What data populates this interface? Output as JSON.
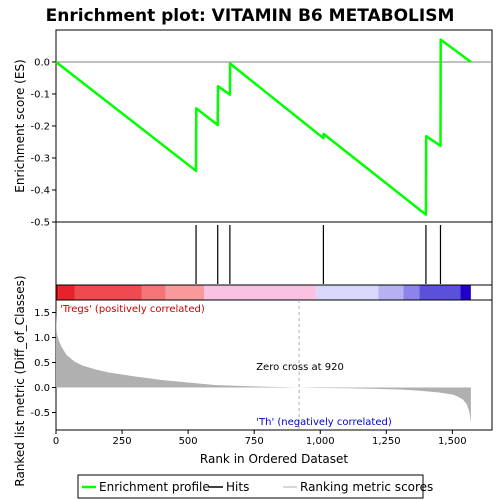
{
  "chart_data": [
    {
      "type": "line",
      "title": "Enrichment plot: VITAMIN B6 METABOLISM",
      "ylabel": "Enrichment score (ES)",
      "xlim": [
        0,
        1650
      ],
      "ylim": [
        -0.5,
        0.1
      ],
      "yticks": [
        "0.0",
        "-0.1",
        "-0.2",
        "-0.3",
        "-0.4",
        "-0.5"
      ],
      "grid": false,
      "series": [
        {
          "name": "Enrichment profile",
          "color": "#00ff00",
          "x": [
            0,
            530,
            531,
            612,
            613,
            658,
            659,
            1012,
            1013,
            1400,
            1401,
            1455,
            1456,
            1570
          ],
          "y": [
            0.0,
            -0.34,
            -0.145,
            -0.197,
            -0.076,
            -0.102,
            -0.005,
            -0.238,
            -0.225,
            -0.477,
            -0.232,
            -0.262,
            0.07,
            0.0
          ]
        }
      ]
    },
    {
      "type": "hits",
      "name": "Hits",
      "color": "#000000",
      "positions": [
        530,
        612,
        658,
        1012,
        1400,
        1455
      ]
    },
    {
      "type": "area",
      "ylabel": "Ranked list metric (Diff_of_Classes)",
      "xlabel": "Rank in Ordered Dataset",
      "xlim": [
        0,
        1650
      ],
      "ylim": [
        -0.85,
        1.75
      ],
      "xticks": [
        0,
        250,
        500,
        750,
        1000,
        1250,
        1500
      ],
      "xtick_labels": [
        "0",
        "250",
        "500",
        "750",
        "1,000",
        "1,250",
        "1,500"
      ],
      "yticks": [
        1.5,
        1.0,
        0.5,
        0.0,
        -0.5
      ],
      "ytick_labels": [
        "1.5",
        "1.0",
        "0.5",
        "0.0",
        "-0.5"
      ],
      "series": [
        {
          "name": "Ranking metric scores",
          "color": "#b0b0b0",
          "x": [
            0,
            3,
            10,
            20,
            40,
            70,
            100,
            150,
            200,
            250,
            300,
            400,
            500,
            600,
            700,
            800,
            920,
            1000,
            1100,
            1200,
            1300,
            1350,
            1400,
            1450,
            1500,
            1520,
            1540,
            1555,
            1565,
            1570
          ],
          "y": [
            1.5,
            1.1,
            0.95,
            0.82,
            0.65,
            0.52,
            0.44,
            0.36,
            0.3,
            0.26,
            0.22,
            0.15,
            0.1,
            0.05,
            0.03,
            0.015,
            0.0,
            -0.01,
            -0.015,
            -0.025,
            -0.04,
            -0.055,
            -0.075,
            -0.1,
            -0.14,
            -0.18,
            -0.24,
            -0.34,
            -0.5,
            -0.7
          ]
        }
      ],
      "zero_cross": 920,
      "annotations": {
        "positive": "'Tregs' (positively correlated)",
        "negative": "'Th' (negatively correlated)",
        "zero_cross": "Zero cross at 920"
      }
    }
  ],
  "color_bar": [
    {
      "from": 0,
      "to": 8,
      "color": "#cc0000"
    },
    {
      "from": 8,
      "to": 70,
      "color": "#e8222a"
    },
    {
      "from": 70,
      "to": 325,
      "color": "#ee4a50"
    },
    {
      "from": 325,
      "to": 415,
      "color": "#f47478"
    },
    {
      "from": 415,
      "to": 560,
      "color": "#f89a9c"
    },
    {
      "from": 560,
      "to": 985,
      "color": "#f9c2e3"
    },
    {
      "from": 985,
      "to": 1220,
      "color": "#dad8fa"
    },
    {
      "from": 1220,
      "to": 1315,
      "color": "#b6b2f2"
    },
    {
      "from": 1315,
      "to": 1375,
      "color": "#8c84ea"
    },
    {
      "from": 1375,
      "to": 1530,
      "color": "#5a50dc"
    },
    {
      "from": 1530,
      "to": 1570,
      "color": "#2200cc"
    }
  ],
  "legend": {
    "items": [
      {
        "label": "Enrichment profile",
        "color": "#00ff00"
      },
      {
        "label": "Hits",
        "color": "#000000"
      },
      {
        "label": "Ranking metric scores",
        "color": "#c8c8c8"
      }
    ]
  }
}
